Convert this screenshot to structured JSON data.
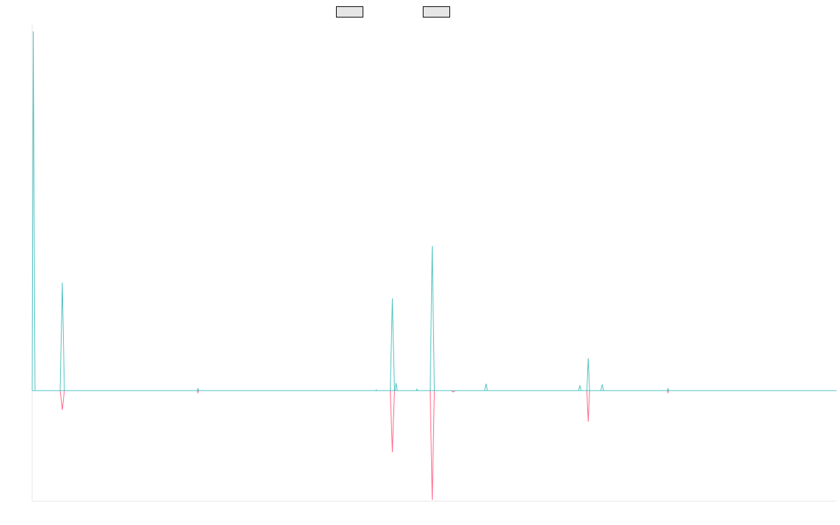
{
  "chart_data": {
    "type": "line",
    "title": "",
    "xlabel": "",
    "ylabel": "",
    "grid": false,
    "legend_position": "top-center",
    "x_range": [
      0,
      1
    ],
    "ylim": [
      -160,
      530
    ],
    "series": [
      {
        "name": "",
        "color": "#4bc0c0",
        "fill": "#e6e6e6",
        "points": [
          [
            0.0,
            0
          ],
          [
            0.0013,
            522
          ],
          [
            0.0035,
            0
          ],
          [
            0.0348,
            0
          ],
          [
            0.0374,
            157
          ],
          [
            0.04,
            0
          ],
          [
            0.2052,
            0
          ],
          [
            0.2061,
            3
          ],
          [
            0.207,
            0
          ],
          [
            0.427,
            0
          ],
          [
            0.4278,
            1
          ],
          [
            0.4287,
            0
          ],
          [
            0.4452,
            0
          ],
          [
            0.4478,
            134
          ],
          [
            0.4504,
            0
          ],
          [
            0.4513,
            0
          ],
          [
            0.4522,
            11
          ],
          [
            0.4539,
            0
          ],
          [
            0.4774,
            0
          ],
          [
            0.4783,
            2
          ],
          [
            0.4791,
            0
          ],
          [
            0.4948,
            0
          ],
          [
            0.4974,
            210
          ],
          [
            0.5,
            0
          ],
          [
            0.5626,
            0
          ],
          [
            0.5643,
            10
          ],
          [
            0.5661,
            0
          ],
          [
            0.6791,
            0
          ],
          [
            0.6809,
            7
          ],
          [
            0.6826,
            0
          ],
          [
            0.6896,
            0
          ],
          [
            0.6913,
            47
          ],
          [
            0.693,
            0
          ],
          [
            0.707,
            0
          ],
          [
            0.7087,
            9
          ],
          [
            0.7104,
            0
          ],
          [
            0.7896,
            0
          ],
          [
            0.7904,
            3
          ],
          [
            0.7913,
            0
          ],
          [
            1.0,
            0
          ]
        ]
      },
      {
        "name": "",
        "color": "#ff6384",
        "fill": "#e6e6e6",
        "points": [
          [
            0.0,
            0
          ],
          [
            0.0348,
            0
          ],
          [
            0.0374,
            -28
          ],
          [
            0.04,
            0
          ],
          [
            0.2052,
            0
          ],
          [
            0.2061,
            -3
          ],
          [
            0.207,
            0
          ],
          [
            0.4452,
            0
          ],
          [
            0.4478,
            -89
          ],
          [
            0.4504,
            0
          ],
          [
            0.5209,
            0
          ],
          [
            0.5235,
            -2
          ],
          [
            0.5261,
            0
          ],
          [
            0.4948,
            0
          ],
          [
            0.4974,
            -158
          ],
          [
            0.5,
            0
          ],
          [
            0.6896,
            0
          ],
          [
            0.6913,
            -45
          ],
          [
            0.693,
            0
          ],
          [
            0.7896,
            0
          ],
          [
            0.7904,
            -3
          ],
          [
            0.7913,
            0
          ],
          [
            1.0,
            0
          ]
        ]
      }
    ]
  }
}
